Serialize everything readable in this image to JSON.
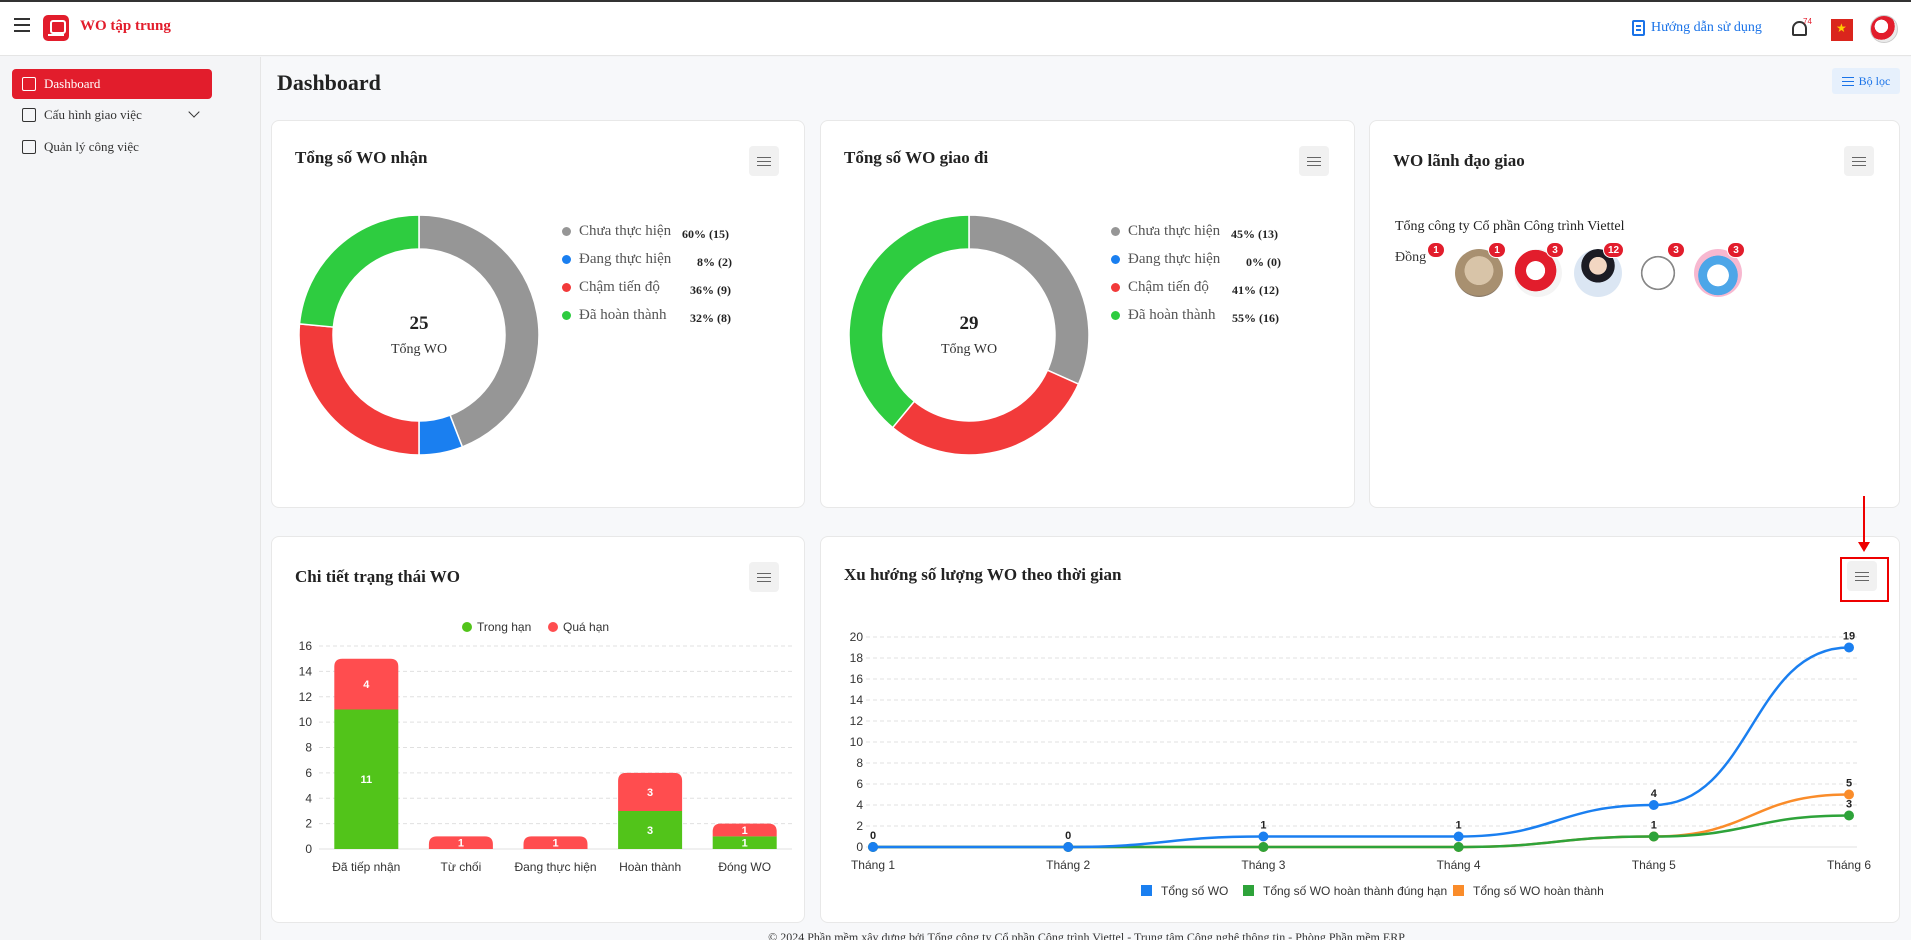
{
  "header": {
    "app_title": "WO tập trung",
    "guide_label": "Hướng dẫn sử dụng",
    "notification_count": "74"
  },
  "sidebar": {
    "items": [
      {
        "label": "Dashboard",
        "icon": "grid-icon"
      },
      {
        "label": "Cấu hình giao việc",
        "icon": "checklist-icon"
      },
      {
        "label": "Quản lý công việc",
        "icon": "briefcase-icon"
      }
    ]
  },
  "page": {
    "title": "Dashboard",
    "filter_label": "Bộ lọc"
  },
  "colors": {
    "brand": "#e21d2c",
    "accent": "#1a73e8",
    "chua": "#969696",
    "dang": "#1a7ff0",
    "cham": "#f23a3a",
    "hoan": "#2ecc40",
    "trong_han": "#52c41a",
    "qua_han": "#ff4d4f",
    "line_total": "#1a7ff0",
    "line_ontime": "#2ea33a",
    "line_done": "#fa8c2a"
  },
  "received": {
    "title": "Tổng số WO nhận",
    "total": "25",
    "total_label": "Tổng WO",
    "legend": [
      {
        "label": "Chưa thực hiện",
        "pct": "60% (15)",
        "key": "chua"
      },
      {
        "label": "Đang thực hiện",
        "pct": "8% (2)",
        "key": "dang"
      },
      {
        "label": "Chậm tiến độ",
        "pct": "36% (9)",
        "key": "cham"
      },
      {
        "label": "Đã hoàn thành",
        "pct": "32% (8)",
        "key": "hoan"
      }
    ]
  },
  "assigned": {
    "title": "Tổng số WO giao đi",
    "total": "29",
    "total_label": "Tổng WO",
    "legend": [
      {
        "label": "Chưa thực hiện",
        "pct": "45% (13)",
        "key": "chua"
      },
      {
        "label": "Đang thực hiện",
        "pct": "0% (0)",
        "key": "dang"
      },
      {
        "label": "Chậm tiến độ",
        "pct": "41% (12)",
        "key": "cham"
      },
      {
        "label": "Đã hoàn thành",
        "pct": "55% (16)",
        "key": "hoan"
      }
    ]
  },
  "leaders": {
    "title": "WO lãnh đạo giao",
    "company": "Tổng công ty Cổ phần Công trình Viettel",
    "broken_image_alt": "Đồng",
    "badges": [
      "1",
      "1",
      "3",
      "12",
      "3",
      "3"
    ]
  },
  "status_detail": {
    "title": "Chi tiết trạng thái WO"
  },
  "trend": {
    "title": "Xu hướng số lượng WO theo thời gian"
  },
  "footer": {
    "text": "© 2024 Phần mềm xây dựng bởi Tổng công ty Cổ phần Công trình Viettel - Trung tâm Công nghệ thông tin - Phòng Phần mềm ERP"
  },
  "chart_data": [
    {
      "type": "pie",
      "title": "Tổng số WO nhận",
      "categories": [
        "Chưa thực hiện",
        "Đang thực hiện",
        "Chậm tiến độ",
        "Đã hoàn thành"
      ],
      "values": [
        15,
        2,
        9,
        8
      ],
      "center_value": "25",
      "center_label": "Tổng WO"
    },
    {
      "type": "pie",
      "title": "Tổng số WO giao đi",
      "categories": [
        "Chưa thực hiện",
        "Đang thực hiện",
        "Chậm tiến độ",
        "Đã hoàn thành"
      ],
      "values": [
        13,
        0,
        12,
        16
      ],
      "center_value": "29",
      "center_label": "Tổng WO"
    },
    {
      "type": "bar",
      "stacked": true,
      "title": "Chi tiết trạng thái WO",
      "categories": [
        "Đã tiếp nhận",
        "Từ chối",
        "Đang thực hiện",
        "Hoàn thành",
        "Đóng WO"
      ],
      "series": [
        {
          "name": "Trong hạn",
          "values": [
            11,
            0,
            0,
            3,
            1
          ],
          "color": "#52c41a"
        },
        {
          "name": "Quá hạn",
          "values": [
            4,
            1,
            1,
            3,
            1
          ],
          "color": "#ff4d4f"
        }
      ],
      "ylim": [
        0,
        16
      ],
      "yticks": [
        0,
        2,
        4,
        6,
        8,
        10,
        12,
        14,
        16
      ],
      "grid": true,
      "legend": "top-center"
    },
    {
      "type": "line",
      "title": "Xu hướng số lượng WO theo thời gian",
      "categories": [
        "Tháng 1",
        "Tháng 2",
        "Tháng 3",
        "Tháng 4",
        "Tháng 5",
        "Tháng 6"
      ],
      "series": [
        {
          "name": "Tổng số WO",
          "values": [
            0,
            0,
            1,
            1,
            4,
            19
          ],
          "color": "#1a7ff0"
        },
        {
          "name": "Tổng số WO hoàn thành đúng hạn",
          "values": [
            0,
            0,
            0,
            0,
            1,
            3
          ],
          "color": "#2ea33a"
        },
        {
          "name": "Tổng số WO hoàn thành",
          "values": [
            0,
            0,
            0,
            0,
            1,
            5
          ],
          "color": "#fa8c2a"
        }
      ],
      "ylim": [
        0,
        20
      ],
      "yticks": [
        0,
        2,
        4,
        6,
        8,
        10,
        12,
        14,
        16,
        18,
        20
      ],
      "grid": true,
      "legend": "bottom-center"
    }
  ]
}
